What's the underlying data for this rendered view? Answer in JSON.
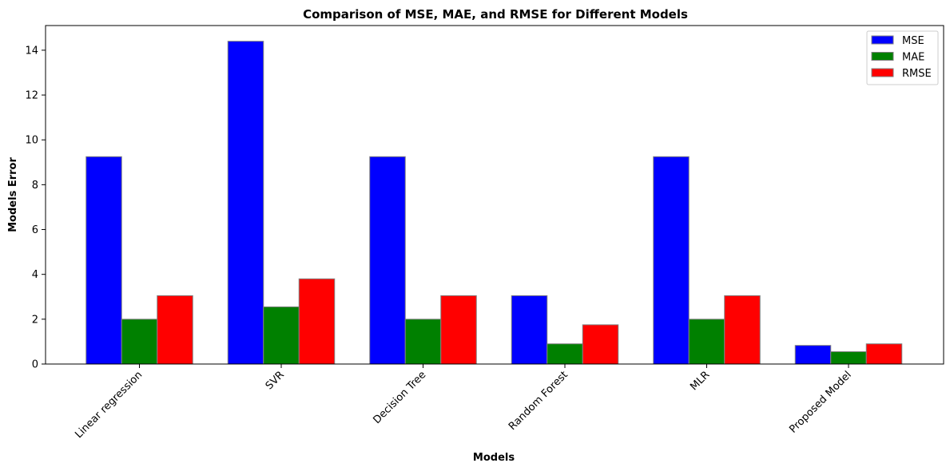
{
  "chart_data": {
    "type": "bar",
    "title": "Comparison of MSE, MAE, and RMSE for Different Models",
    "xlabel": "Models",
    "ylabel": "Models Error",
    "categories": [
      "Linear regression",
      "SVR",
      "Decision Tree",
      "Random Forest",
      "MLR",
      "Proposed Model"
    ],
    "series": [
      {
        "name": "MSE",
        "color": "#0000ff",
        "values": [
          9.25,
          14.4,
          9.25,
          3.05,
          9.25,
          0.83
        ]
      },
      {
        "name": "MAE",
        "color": "#008000",
        "values": [
          2.0,
          2.55,
          2.0,
          0.9,
          2.0,
          0.55
        ]
      },
      {
        "name": "RMSE",
        "color": "#ff0000",
        "values": [
          3.05,
          3.8,
          3.05,
          1.75,
          3.05,
          0.9
        ]
      }
    ],
    "ylim": [
      0,
      15.1
    ],
    "yticks": [
      "0",
      "2",
      "4",
      "6",
      "8",
      "10",
      "12",
      "14"
    ],
    "grid": false,
    "legend_position": "top-right",
    "bar_edge_color": "#808080"
  }
}
